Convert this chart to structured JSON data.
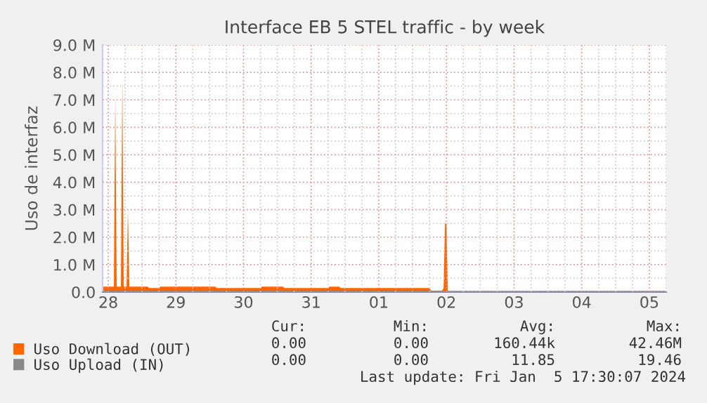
{
  "chart_data": {
    "type": "area",
    "title": "Interface EB 5 STEL traffic - by week",
    "ylabel": "Uso de interfaz",
    "xlim": [
      "2023-12-27T22:00",
      "2024-01-05T06:00"
    ],
    "xticks": [
      {
        "value": "2023-12-28",
        "label": "28"
      },
      {
        "value": "2023-12-29",
        "label": "29"
      },
      {
        "value": "2023-12-30",
        "label": "30"
      },
      {
        "value": "2023-12-31",
        "label": "31"
      },
      {
        "value": "2024-01-01",
        "label": "01"
      },
      {
        "value": "2024-01-02",
        "label": "02"
      },
      {
        "value": "2024-01-03",
        "label": "03"
      },
      {
        "value": "2024-01-04",
        "label": "04"
      },
      {
        "value": "2024-01-05",
        "label": "05"
      }
    ],
    "ylim": [
      0,
      9000000
    ],
    "yticks": [
      {
        "value": 0,
        "label": "0.0"
      },
      {
        "value": 1000000,
        "label": "1.0 M"
      },
      {
        "value": 2000000,
        "label": "2.0 M"
      },
      {
        "value": 3000000,
        "label": "3.0 M"
      },
      {
        "value": 4000000,
        "label": "4.0 M"
      },
      {
        "value": 5000000,
        "label": "5.0 M"
      },
      {
        "value": 6000000,
        "label": "6.0 M"
      },
      {
        "value": 7000000,
        "label": "7.0 M"
      },
      {
        "value": 8000000,
        "label": "8.0 M"
      },
      {
        "value": 9000000,
        "label": "9.0 M"
      }
    ],
    "grid": true,
    "legend": "bottom",
    "series": [
      {
        "name": "Uso Download (OUT)",
        "color": "#ff6600",
        "x": [
          "2023-12-27T22:00",
          "2023-12-28T02:00",
          "2023-12-28T02:30",
          "2023-12-28T03:00",
          "2023-12-28T04:30",
          "2023-12-28T05:00",
          "2023-12-28T05:30",
          "2023-12-28T06:30",
          "2023-12-28T07:00",
          "2023-12-28T07:30",
          "2023-12-28T14:00",
          "2023-12-28T14:30",
          "2023-12-28T18:00",
          "2023-12-28T18:30",
          "2023-12-29T14:00",
          "2023-12-29T14:30",
          "2023-12-30T06:00",
          "2023-12-30T06:30",
          "2023-12-30T14:00",
          "2023-12-30T14:30",
          "2023-12-31T06:00",
          "2023-12-31T06:30",
          "2023-12-31T10:00",
          "2023-12-31T10:30",
          "2024-01-01T18:00",
          "2024-01-01T18:30",
          "2024-01-01T22:30",
          "2024-01-01T23:00",
          "2024-01-01T23:30",
          "2024-01-02T00:00",
          "2024-01-02T00:30",
          "2024-01-05T06:00"
        ],
        "values": [
          200000,
          200000,
          7200000,
          200000,
          200000,
          7800000,
          200000,
          200000,
          3000000,
          200000,
          200000,
          150000,
          150000,
          200000,
          200000,
          150000,
          150000,
          200000,
          200000,
          150000,
          150000,
          200000,
          200000,
          150000,
          150000,
          50000,
          50000,
          150000,
          2500000,
          2500000,
          0,
          0
        ]
      },
      {
        "name": "Uso Upload (IN)",
        "color": "#888888",
        "type": "line",
        "x": [
          "2023-12-27T22:00",
          "2024-01-05T06:00"
        ],
        "values": [
          0,
          0
        ]
      }
    ],
    "annotations": [
      "Cur:",
      "Min:",
      "Avg:",
      "Max:",
      "0.00",
      "0.00",
      "160.44k",
      "42.46M",
      "0.00",
      "0.00",
      "11.85",
      "19.46",
      "Last update: Fri Jan  5 17:30:07 2024"
    ]
  }
}
